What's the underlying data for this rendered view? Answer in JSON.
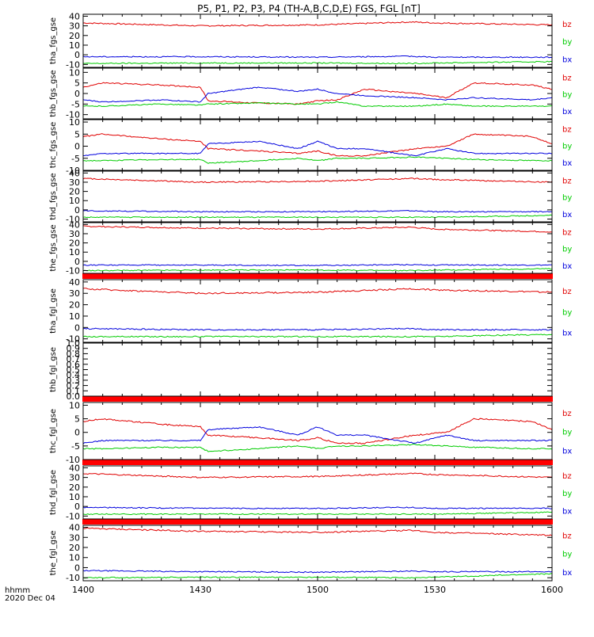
{
  "title": "P5, P1, P2, P3, P4 (TH-A,B,C,D,E) FGS, FGL [nT]",
  "time_axis": {
    "tick_labels": [
      "1400",
      "1430",
      "1500",
      "1530",
      "1600"
    ],
    "label_top": "hhmm",
    "label_bottom": "2020 Dec 04"
  },
  "colors": {
    "bz": "#e00000",
    "by": "#00cc00",
    "bx": "#0000dd",
    "bar": "#ff0000"
  },
  "chart_data": [
    {
      "type": "line",
      "ylabel": "tha_fgs_gse",
      "ylim": [
        -13,
        42
      ],
      "yticks": [
        -10,
        0,
        10,
        20,
        30,
        40
      ],
      "x": [
        1400,
        1430,
        1500,
        1524,
        1530,
        1600
      ],
      "series": [
        {
          "name": "bz",
          "values": [
            33,
            30,
            31,
            34,
            33,
            31
          ]
        },
        {
          "name": "by",
          "values": [
            -9,
            -8.5,
            -8.5,
            -9,
            -8.5,
            -7
          ]
        },
        {
          "name": "bx",
          "values": [
            -2,
            -2,
            -2.5,
            -1.5,
            -2.5,
            -2.5
          ]
        }
      ]
    },
    {
      "type": "line",
      "ylabel": "thb_fgs_gse",
      "ylim": [
        -12,
        12
      ],
      "yticks": [
        -10,
        -5,
        0,
        5,
        10
      ],
      "x": [
        1400,
        1405,
        1420,
        1430,
        1432,
        1445,
        1455,
        1500,
        1505,
        1512,
        1525,
        1533,
        1540,
        1555,
        1600
      ],
      "series": [
        {
          "name": "bz",
          "values": [
            3,
            5,
            4,
            3,
            -3.5,
            -4.5,
            -5,
            -3.5,
            -3,
            2,
            0,
            -2,
            5,
            4,
            2
          ]
        },
        {
          "name": "by",
          "values": [
            -6,
            -6,
            -5,
            -5.5,
            -5,
            -4.5,
            -5,
            -5,
            -4,
            -6,
            -6,
            -5,
            -6,
            -6,
            -6
          ]
        },
        {
          "name": "bx",
          "values": [
            -3,
            -4,
            -3,
            -4,
            0,
            3,
            1,
            2,
            0,
            -1,
            -2,
            -3,
            -2,
            -3,
            -2
          ]
        }
      ]
    },
    {
      "type": "line",
      "ylabel": "thc_fgs_gse",
      "ylim": [
        -10,
        11
      ],
      "yticks": [
        -10,
        -5,
        0,
        5,
        10
      ],
      "x": [
        1400,
        1405,
        1420,
        1430,
        1432,
        1445,
        1455,
        1500,
        1505,
        1512,
        1525,
        1533,
        1540,
        1555,
        1600
      ],
      "series": [
        {
          "name": "bz",
          "values": [
            4,
            5,
            3,
            2,
            -1,
            -2,
            -3,
            -2,
            -4,
            -4,
            -1,
            0,
            5,
            4,
            1
          ]
        },
        {
          "name": "by",
          "values": [
            -6,
            -6,
            -5.5,
            -5.5,
            -7,
            -6,
            -5,
            -6,
            -5,
            -5,
            -4.5,
            -5,
            -5.5,
            -6,
            -6
          ]
        },
        {
          "name": "bx",
          "values": [
            -4,
            -3,
            -3,
            -3,
            1,
            2,
            -1,
            2,
            -1,
            -1,
            -4,
            -1,
            -3,
            -3,
            -3
          ]
        }
      ]
    },
    {
      "type": "line",
      "ylabel": "thd_fgs_gse",
      "ylim": [
        -13,
        42
      ],
      "yticks": [
        -10,
        0,
        10,
        20,
        30,
        40
      ],
      "x": [
        1400,
        1430,
        1500,
        1524,
        1530,
        1600
      ],
      "series": [
        {
          "name": "bz",
          "values": [
            34,
            30,
            31,
            34,
            33,
            30
          ]
        },
        {
          "name": "by",
          "values": [
            -8,
            -8,
            -8,
            -8,
            -8,
            -6
          ]
        },
        {
          "name": "bx",
          "values": [
            -1,
            -2,
            -2,
            -1,
            -2,
            -2
          ]
        }
      ]
    },
    {
      "type": "line",
      "ylabel": "the_fgs_gse",
      "ylim": [
        -13,
        42
      ],
      "yticks": [
        -10,
        0,
        10,
        20,
        30,
        40
      ],
      "x": [
        1400,
        1430,
        1500,
        1524,
        1530,
        1600
      ],
      "series": [
        {
          "name": "bz",
          "values": [
            38,
            36,
            35,
            37,
            35,
            32
          ]
        },
        {
          "name": "by",
          "values": [
            -10,
            -9.5,
            -9.5,
            -10,
            -9.5,
            -8
          ]
        },
        {
          "name": "bx",
          "values": [
            -4,
            -4,
            -4.5,
            -3.5,
            -4,
            -4
          ]
        }
      ]
    },
    {
      "type": "line",
      "ylabel": "tha_fgl_gse",
      "ylim": [
        -13,
        42
      ],
      "yticks": [
        -10,
        0,
        10,
        20,
        30,
        40
      ],
      "x": [
        1400,
        1430,
        1500,
        1524,
        1530,
        1600
      ],
      "series": [
        {
          "name": "bz",
          "values": [
            34,
            30,
            31,
            34,
            33,
            31
          ]
        },
        {
          "name": "by",
          "values": [
            -8,
            -8,
            -8,
            -8,
            -8,
            -6
          ]
        },
        {
          "name": "bx",
          "values": [
            -1,
            -2,
            -2,
            -1,
            -2,
            -2
          ]
        }
      ]
    },
    {
      "type": "line",
      "ylabel": "thb_fgl_gse",
      "ylim": [
        0,
        1
      ],
      "yticks": [
        0.0,
        0.1,
        0.2,
        0.3,
        0.4,
        0.5,
        0.6,
        0.7,
        0.8,
        0.9,
        1.0
      ],
      "x": [],
      "series": []
    },
    {
      "type": "line",
      "ylabel": "thc_fgl_gse",
      "ylim": [
        -10,
        11
      ],
      "yticks": [
        -10,
        -5,
        0,
        5,
        10
      ],
      "x": [
        1400,
        1405,
        1420,
        1430,
        1432,
        1445,
        1455,
        1500,
        1505,
        1512,
        1525,
        1533,
        1540,
        1555,
        1600
      ],
      "series": [
        {
          "name": "bz",
          "values": [
            4,
            5,
            3,
            2,
            -1,
            -2,
            -3,
            -2,
            -4,
            -4,
            -1,
            0,
            5,
            4,
            1
          ]
        },
        {
          "name": "by",
          "values": [
            -6,
            -6,
            -5.5,
            -5.5,
            -7,
            -6,
            -5,
            -6,
            -5,
            -5,
            -4.5,
            -5,
            -5.5,
            -6,
            -6
          ]
        },
        {
          "name": "bx",
          "values": [
            -4,
            -3,
            -3,
            -3,
            1,
            2,
            -1,
            2,
            -1,
            -1,
            -4,
            -1,
            -3,
            -3,
            -3
          ]
        }
      ]
    },
    {
      "type": "line",
      "ylabel": "thd_fgl_gse",
      "ylim": [
        -13,
        42
      ],
      "yticks": [
        -10,
        0,
        10,
        20,
        30,
        40
      ],
      "x": [
        1400,
        1430,
        1500,
        1524,
        1530,
        1600
      ],
      "series": [
        {
          "name": "bz",
          "values": [
            34,
            30,
            31,
            34,
            33,
            30
          ]
        },
        {
          "name": "by",
          "values": [
            -8,
            -8,
            -8,
            -8,
            -8,
            -6
          ]
        },
        {
          "name": "bx",
          "values": [
            -1,
            -2,
            -2,
            -1,
            -2,
            -2
          ]
        }
      ]
    },
    {
      "type": "line",
      "ylabel": "the_fgl_gse",
      "ylim": [
        -13,
        42
      ],
      "yticks": [
        -10,
        0,
        10,
        20,
        30,
        40
      ],
      "x": [
        1400,
        1430,
        1500,
        1524,
        1530,
        1600
      ],
      "series": [
        {
          "name": "bz",
          "values": [
            39,
            36,
            35,
            37,
            35,
            32
          ]
        },
        {
          "name": "by",
          "values": [
            -10,
            -9.5,
            -9.5,
            -10,
            -9.5,
            -6
          ]
        },
        {
          "name": "bx",
          "values": [
            -3,
            -4,
            -4.5,
            -3.5,
            -4,
            -4
          ]
        }
      ]
    }
  ]
}
